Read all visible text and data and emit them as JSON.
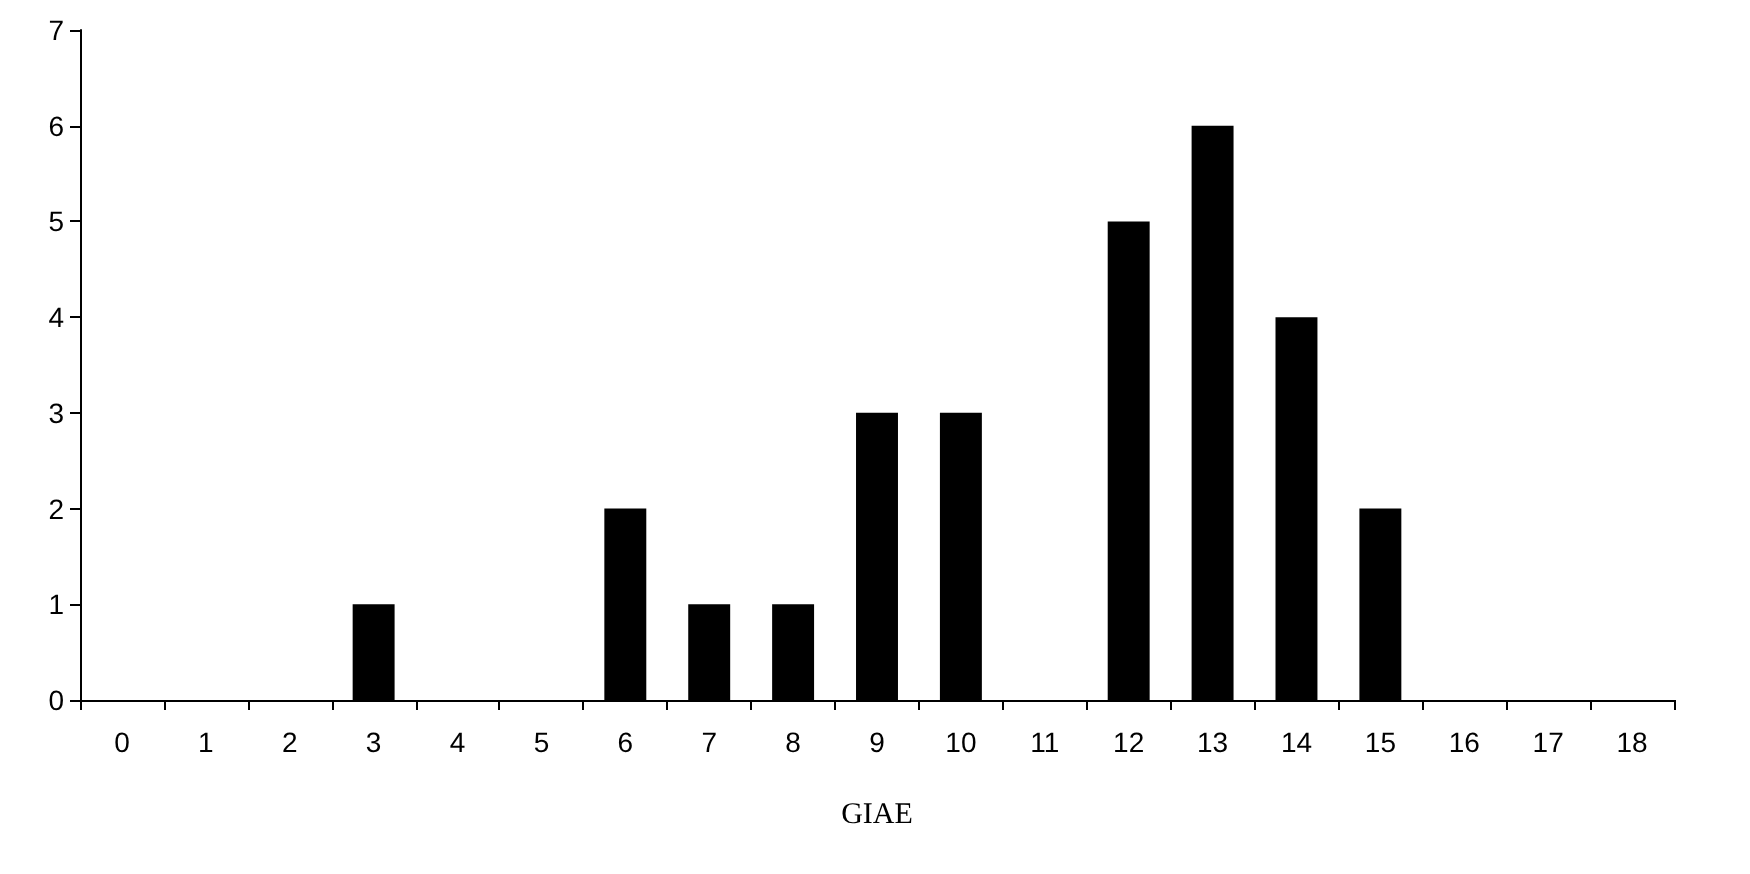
{
  "chart_data": {
    "type": "bar",
    "xlabel": "GIAE",
    "categories": [
      "0",
      "1",
      "2",
      "3",
      "4",
      "5",
      "6",
      "7",
      "8",
      "9",
      "10",
      "11",
      "12",
      "13",
      "14",
      "15",
      "16",
      "17",
      "18"
    ],
    "values": [
      0,
      0,
      0,
      1,
      0,
      0,
      2,
      1,
      1,
      3,
      3,
      0,
      5,
      6,
      4,
      2,
      0,
      0,
      0
    ],
    "color": "#000000",
    "ylim": [
      0,
      7
    ],
    "yticks": [
      0,
      1,
      2,
      3,
      4,
      5,
      6,
      7
    ],
    "grid": false
  }
}
